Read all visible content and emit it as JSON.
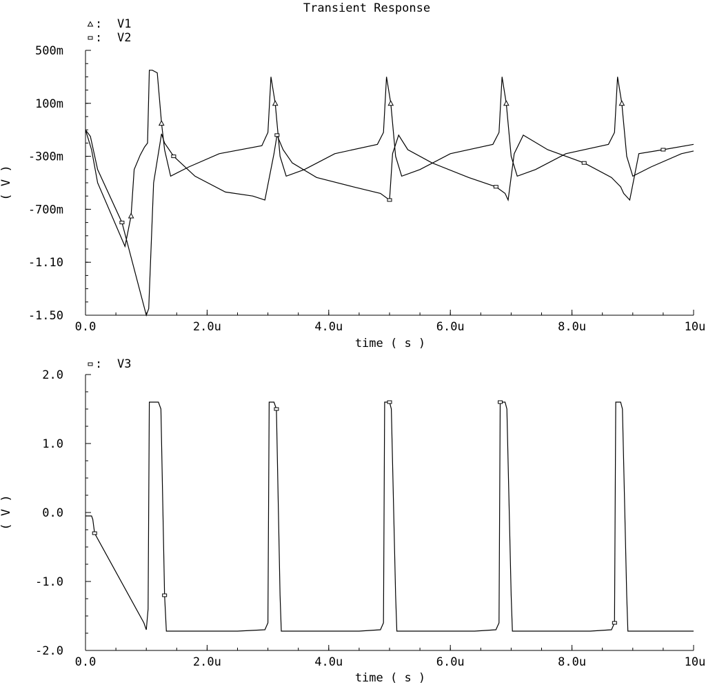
{
  "chart_data": [
    {
      "type": "line",
      "title": "Transient Response",
      "xlabel": "time ( s )",
      "ylabel": "( V )",
      "x_unit": "s",
      "xlim": [
        0,
        1e-05
      ],
      "ylim": [
        -1.5,
        0.5
      ],
      "x_ticks": [
        0,
        2e-06,
        4e-06,
        6e-06,
        8e-06,
        1e-05
      ],
      "x_tick_labels": [
        "0.0",
        "2.0u",
        "4.0u",
        "6.0u",
        "8.0u",
        "10u"
      ],
      "y_ticks": [
        0.5,
        0.1,
        -0.3,
        -0.7,
        -1.1,
        -1.5
      ],
      "y_tick_labels": [
        "500m",
        "100m",
        "-300m",
        "-700m",
        "-1.10",
        "-1.50"
      ],
      "grid": false,
      "legend_position": "top-left",
      "series": [
        {
          "name": "V1",
          "marker": "triangle",
          "x": [
            0,
            1e-07,
            2e-07,
            6.5e-07,
            7.5e-07,
            8e-07,
            9e-07,
            9.7e-07,
            1.02e-06,
            1.05e-06,
            1.1e-06,
            1.18e-06,
            1.25e-06,
            1.3e-06,
            1.4e-06,
            1.7e-06,
            2.2e-06,
            2.9e-06,
            3e-06,
            3.05e-06,
            3.12e-06,
            3.2e-06,
            3.3e-06,
            3.6e-06,
            4.1e-06,
            4.8e-06,
            4.9e-06,
            4.95e-06,
            5.02e-06,
            5.1e-06,
            5.2e-06,
            5.5e-06,
            6e-06,
            6.7e-06,
            6.8e-06,
            6.85e-06,
            6.92e-06,
            7e-06,
            7.1e-06,
            7.4e-06,
            7.9e-06,
            8.6e-06,
            8.7e-06,
            8.75e-06,
            8.82e-06,
            8.9e-06,
            9e-06,
            9.3e-06,
            9.8e-06,
            1e-05
          ],
          "y": [
            -0.1,
            -0.25,
            -0.5,
            -0.98,
            -0.75,
            -0.4,
            -0.29,
            -0.23,
            -0.2,
            0.35,
            0.35,
            0.33,
            -0.05,
            -0.25,
            -0.45,
            -0.38,
            -0.28,
            -0.22,
            -0.12,
            0.3,
            0.1,
            -0.3,
            -0.45,
            -0.4,
            -0.28,
            -0.21,
            -0.12,
            0.3,
            0.1,
            -0.3,
            -0.45,
            -0.4,
            -0.28,
            -0.21,
            -0.12,
            0.3,
            0.1,
            -0.3,
            -0.45,
            -0.4,
            -0.28,
            -0.21,
            -0.12,
            0.3,
            0.1,
            -0.3,
            -0.45,
            -0.38,
            -0.28,
            -0.26
          ]
        },
        {
          "name": "V2",
          "marker": "square",
          "x": [
            0,
            8e-08,
            2e-07,
            6e-07,
            1e-06,
            1.04e-06,
            1.12e-06,
            1.25e-06,
            1.3e-06,
            1.45e-06,
            1.8e-06,
            2.3e-06,
            2.75e-06,
            2.95e-06,
            3.1e-06,
            3.15e-06,
            3.25e-06,
            3.4e-06,
            3.8e-06,
            4.4e-06,
            4.85e-06,
            5e-06,
            5.05e-06,
            5.15e-06,
            5.3e-06,
            5.7e-06,
            6.3e-06,
            6.75e-06,
            6.9e-06,
            6.95e-06,
            7.05e-06,
            7.2e-06,
            7.6e-06,
            8.2e-06,
            8.65e-06,
            8.8e-06,
            8.85e-06,
            8.95e-06,
            9.1e-06,
            9.5e-06,
            1e-05
          ],
          "y": [
            -0.1,
            -0.15,
            -0.4,
            -0.8,
            -1.5,
            -1.45,
            -0.5,
            -0.13,
            -0.2,
            -0.3,
            -0.45,
            -0.57,
            -0.6,
            -0.63,
            -0.28,
            -0.14,
            -0.25,
            -0.35,
            -0.46,
            -0.53,
            -0.58,
            -0.63,
            -0.28,
            -0.14,
            -0.25,
            -0.35,
            -0.46,
            -0.53,
            -0.58,
            -0.63,
            -0.28,
            -0.14,
            -0.25,
            -0.35,
            -0.46,
            -0.53,
            -0.58,
            -0.63,
            -0.28,
            -0.25,
            -0.21
          ]
        }
      ]
    },
    {
      "type": "line",
      "title": "",
      "xlabel": "time ( s )",
      "ylabel": "( V )",
      "x_unit": "s",
      "xlim": [
        0,
        1e-05
      ],
      "ylim": [
        -2.0,
        2.0
      ],
      "x_ticks": [
        0,
        2e-06,
        4e-06,
        6e-06,
        8e-06,
        1e-05
      ],
      "x_tick_labels": [
        "0.0",
        "2.0u",
        "4.0u",
        "6.0u",
        "8.0u",
        "10u"
      ],
      "y_ticks": [
        2.0,
        1.0,
        0.0,
        -1.0,
        -2.0
      ],
      "y_tick_labels": [
        "2.0",
        "1.0",
        "0.0",
        "-1.0",
        "-2.0"
      ],
      "grid": false,
      "legend_position": "top-left",
      "series": [
        {
          "name": "V3",
          "marker": "square",
          "x": [
            0,
            1e-07,
            1.2e-07,
            1.5e-07,
            9.6e-07,
            1e-06,
            1.03e-06,
            1.05e-06,
            1.2e-06,
            1.24e-06,
            1.3e-06,
            1.33e-06,
            2.5e-06,
            2.95e-06,
            3e-06,
            3.02e-06,
            3.1e-06,
            3.14e-06,
            3.2e-06,
            3.22e-06,
            4.5e-06,
            4.85e-06,
            4.9e-06,
            4.92e-06,
            5e-06,
            5.03e-06,
            5.1e-06,
            5.12e-06,
            6.4e-06,
            6.75e-06,
            6.8e-06,
            6.82e-06,
            6.9e-06,
            6.93e-06,
            7e-06,
            7.02e-06,
            8.3e-06,
            8.65e-06,
            8.7e-06,
            8.72e-06,
            8.8e-06,
            8.83e-06,
            8.9e-06,
            8.92e-06,
            1e-05
          ],
          "y": [
            -0.05,
            -0.05,
            -0.1,
            -0.3,
            -1.6,
            -1.7,
            -1.4,
            1.6,
            1.6,
            1.5,
            -1.2,
            -1.72,
            -1.72,
            -1.7,
            -1.6,
            1.6,
            1.6,
            1.5,
            -1.2,
            -1.72,
            -1.72,
            -1.7,
            -1.6,
            1.6,
            1.6,
            1.5,
            -1.2,
            -1.72,
            -1.72,
            -1.7,
            -1.6,
            1.6,
            1.6,
            1.5,
            -1.2,
            -1.72,
            -1.72,
            -1.7,
            -1.6,
            1.6,
            1.6,
            1.5,
            -1.2,
            -1.72,
            -1.72
          ]
        }
      ]
    }
  ]
}
